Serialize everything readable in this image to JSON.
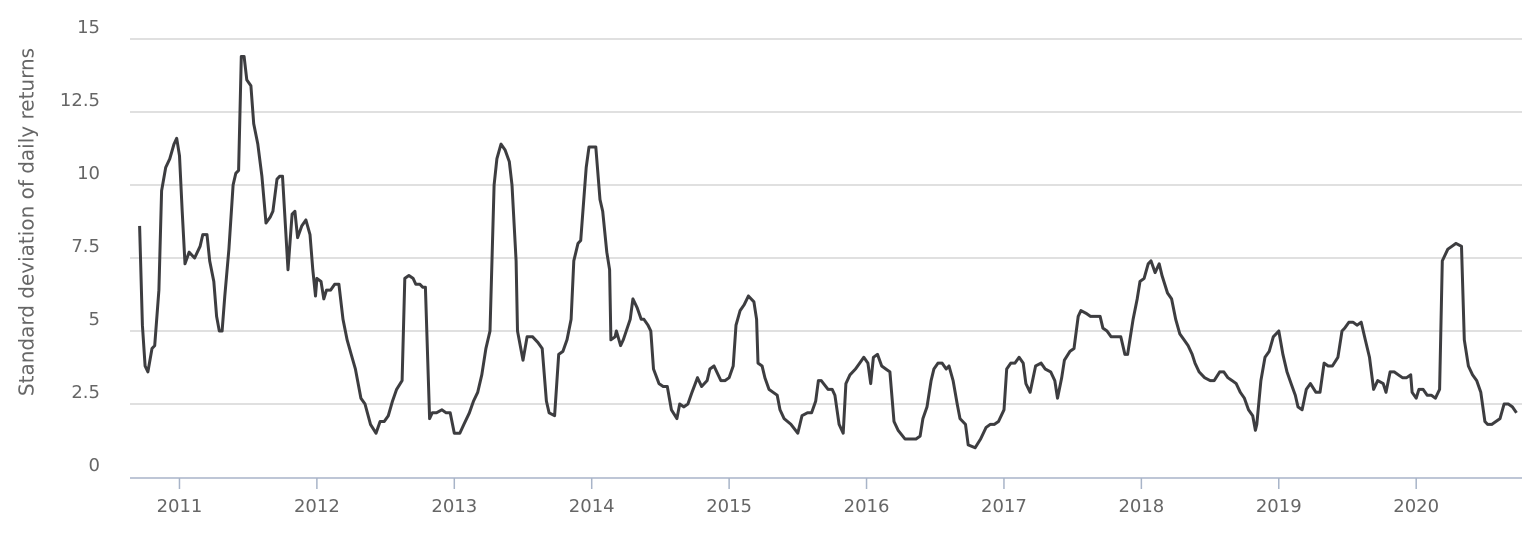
{
  "chart_data": {
    "type": "line",
    "y_label": "Standard deviation of daily returns",
    "x": [
      2010.71,
      2010.73,
      2010.75,
      2010.77,
      2010.8,
      2010.82,
      2010.85,
      2010.87,
      2010.9,
      2010.93,
      2010.96,
      2010.98,
      2011.0,
      2011.02,
      2011.04,
      2011.07,
      2011.11,
      2011.15,
      2011.17,
      2011.2,
      2011.22,
      2011.25,
      2011.27,
      2011.29,
      2011.31,
      2011.33,
      2011.36,
      2011.39,
      2011.41,
      2011.43,
      2011.45,
      2011.47,
      2011.49,
      2011.52,
      2011.54,
      2011.57,
      2011.6,
      2011.63,
      2011.66,
      2011.68,
      2011.71,
      2011.73,
      2011.75,
      2011.79,
      2011.82,
      2011.84,
      2011.86,
      2011.89,
      2011.92,
      2011.95,
      2011.97,
      2011.99,
      2012.0,
      2012.03,
      2012.05,
      2012.07,
      2012.1,
      2012.13,
      2012.16,
      2012.19,
      2012.22,
      2012.25,
      2012.28,
      2012.32,
      2012.35,
      2012.39,
      2012.43,
      2012.46,
      2012.49,
      2012.52,
      2012.55,
      2012.58,
      2012.62,
      2012.64,
      2012.67,
      2012.7,
      2012.72,
      2012.75,
      2012.77,
      2012.79,
      2012.82,
      2012.84,
      2012.87,
      2012.91,
      2012.94,
      2012.97,
      2013.0,
      2013.04,
      2013.07,
      2013.11,
      2013.14,
      2013.17,
      2013.2,
      2013.23,
      2013.26,
      2013.29,
      2013.31,
      2013.34,
      2013.37,
      2013.4,
      2013.42,
      2013.45,
      2013.46,
      2013.5,
      2013.53,
      2013.57,
      2013.61,
      2013.64,
      2013.67,
      2013.69,
      2013.73,
      2013.76,
      2013.79,
      2013.82,
      2013.85,
      2013.87,
      2013.9,
      2013.92,
      2013.96,
      2013.98,
      2014.03,
      2014.06,
      2014.08,
      2014.11,
      2014.13,
      2014.14,
      2014.17,
      2014.18,
      2014.21,
      2014.23,
      2014.28,
      2014.3,
      2014.33,
      2014.36,
      2014.38,
      2014.41,
      2014.43,
      2014.45,
      2014.49,
      2014.52,
      2014.55,
      2014.58,
      2014.62,
      2014.64,
      2014.67,
      2014.7,
      2014.73,
      2014.77,
      2014.8,
      2014.84,
      2014.86,
      2014.89,
      2014.92,
      2014.94,
      2014.97,
      2015.0,
      2015.03,
      2015.05,
      2015.08,
      2015.11,
      2015.14,
      2015.18,
      2015.2,
      2015.21,
      2015.24,
      2015.26,
      2015.29,
      2015.32,
      2015.35,
      2015.37,
      2015.4,
      2015.45,
      2015.5,
      2015.53,
      2015.57,
      2015.6,
      2015.63,
      2015.65,
      2015.67,
      2015.72,
      2015.75,
      2015.77,
      2015.8,
      2015.83,
      2015.85,
      2015.88,
      2015.92,
      2015.95,
      2015.98,
      2016.01,
      2016.03,
      2016.05,
      2016.08,
      2016.11,
      2016.14,
      2016.17,
      2016.2,
      2016.23,
      2016.28,
      2016.32,
      2016.36,
      2016.39,
      2016.41,
      2016.44,
      2016.47,
      2016.49,
      2016.52,
      2016.55,
      2016.58,
      2016.6,
      2016.63,
      2016.66,
      2016.68,
      2016.72,
      2016.74,
      2016.79,
      2016.83,
      2016.87,
      2016.9,
      2016.93,
      2016.96,
      2017.0,
      2017.02,
      2017.05,
      2017.08,
      2017.11,
      2017.14,
      2017.16,
      2017.19,
      2017.23,
      2017.27,
      2017.3,
      2017.34,
      2017.37,
      2017.39,
      2017.42,
      2017.44,
      2017.48,
      2017.51,
      2017.54,
      2017.56,
      2017.6,
      2017.63,
      2017.67,
      2017.7,
      2017.72,
      2017.75,
      2017.78,
      2017.81,
      2017.85,
      2017.88,
      2017.9,
      2017.94,
      2017.97,
      2017.99,
      2018.02,
      2018.05,
      2018.07,
      2018.1,
      2018.13,
      2018.15,
      2018.19,
      2018.22,
      2018.25,
      2018.28,
      2018.31,
      2018.34,
      2018.37,
      2018.39,
      2018.42,
      2018.46,
      2018.5,
      2018.53,
      2018.57,
      2018.6,
      2018.63,
      2018.66,
      2018.69,
      2018.72,
      2018.75,
      2018.78,
      2018.81,
      2018.83,
      2018.84,
      2018.87,
      2018.9,
      2018.93,
      2018.96,
      2019.0,
      2019.03,
      2019.06,
      2019.09,
      2019.12,
      2019.14,
      2019.17,
      2019.2,
      2019.23,
      2019.27,
      2019.3,
      2019.33,
      2019.36,
      2019.39,
      2019.43,
      2019.46,
      2019.48,
      2019.51,
      2019.54,
      2019.57,
      2019.6,
      2019.63,
      2019.66,
      2019.69,
      2019.72,
      2019.76,
      2019.78,
      2019.81,
      2019.84,
      2019.87,
      2019.9,
      2019.93,
      2019.96,
      2019.97,
      2020.0,
      2020.02,
      2020.05,
      2020.08,
      2020.11,
      2020.14,
      2020.17,
      2020.19,
      2020.23,
      2020.26,
      2020.29,
      2020.33,
      2020.35,
      2020.38,
      2020.41,
      2020.44,
      2020.47,
      2020.5,
      2020.52,
      2020.55,
      2020.58,
      2020.61,
      2020.64,
      2020.67,
      2020.7,
      2020.73
    ],
    "series": [
      {
        "color": "#3d3d40",
        "values": [
          8.6,
          5.2,
          3.8,
          3.6,
          4.4,
          4.5,
          6.4,
          9.8,
          10.6,
          10.9,
          11.4,
          11.6,
          11.0,
          9.1,
          7.3,
          7.7,
          7.5,
          7.9,
          8.3,
          8.3,
          7.4,
          6.7,
          5.5,
          5.0,
          5.0,
          6.2,
          7.8,
          10.0,
          10.4,
          10.5,
          14.4,
          14.4,
          13.6,
          13.4,
          12.1,
          11.4,
          10.3,
          8.7,
          8.9,
          9.1,
          10.2,
          10.3,
          10.3,
          7.1,
          9.0,
          9.1,
          8.2,
          8.6,
          8.8,
          8.3,
          7.1,
          6.2,
          6.8,
          6.7,
          6.1,
          6.4,
          6.4,
          6.6,
          6.6,
          5.4,
          4.7,
          4.2,
          3.7,
          2.7,
          2.5,
          1.8,
          1.5,
          1.9,
          1.9,
          2.1,
          2.6,
          3.0,
          3.3,
          6.8,
          6.9,
          6.8,
          6.6,
          6.6,
          6.5,
          6.5,
          2.0,
          2.2,
          2.2,
          2.3,
          2.2,
          2.2,
          1.5,
          1.5,
          1.8,
          2.2,
          2.6,
          2.9,
          3.5,
          4.4,
          5.0,
          10.0,
          10.9,
          11.4,
          11.2,
          10.8,
          10.0,
          7.4,
          5.0,
          4.0,
          4.8,
          4.8,
          4.6,
          4.4,
          2.6,
          2.2,
          2.1,
          4.2,
          4.3,
          4.7,
          5.4,
          7.4,
          8.0,
          8.1,
          10.6,
          11.3,
          11.3,
          9.5,
          9.1,
          7.7,
          7.1,
          4.7,
          4.8,
          5.0,
          4.5,
          4.7,
          5.4,
          6.1,
          5.8,
          5.4,
          5.4,
          5.2,
          5.0,
          3.7,
          3.2,
          3.1,
          3.1,
          2.3,
          2.0,
          2.5,
          2.4,
          2.5,
          2.9,
          3.4,
          3.1,
          3.3,
          3.7,
          3.8,
          3.5,
          3.3,
          3.3,
          3.4,
          3.8,
          5.2,
          5.7,
          5.9,
          6.2,
          6.0,
          5.4,
          3.9,
          3.8,
          3.4,
          3.0,
          2.9,
          2.8,
          2.3,
          2.0,
          1.8,
          1.5,
          2.1,
          2.2,
          2.2,
          2.6,
          3.3,
          3.3,
          3.0,
          3.0,
          2.8,
          1.8,
          1.5,
          3.2,
          3.5,
          3.7,
          3.9,
          4.1,
          3.9,
          3.2,
          4.1,
          4.2,
          3.8,
          3.7,
          3.6,
          1.9,
          1.6,
          1.3,
          1.3,
          1.3,
          1.4,
          2.0,
          2.4,
          3.3,
          3.7,
          3.9,
          3.9,
          3.7,
          3.8,
          3.3,
          2.5,
          2.0,
          1.8,
          1.1,
          1.0,
          1.3,
          1.7,
          1.8,
          1.8,
          1.9,
          2.3,
          3.7,
          3.9,
          3.9,
          4.1,
          3.9,
          3.2,
          2.9,
          3.8,
          3.9,
          3.7,
          3.6,
          3.3,
          2.7,
          3.4,
          4.0,
          4.3,
          4.4,
          5.5,
          5.7,
          5.6,
          5.5,
          5.5,
          5.5,
          5.1,
          5.0,
          4.8,
          4.8,
          4.8,
          4.2,
          4.2,
          5.4,
          6.1,
          6.7,
          6.8,
          7.3,
          7.4,
          7.0,
          7.3,
          6.9,
          6.3,
          6.1,
          5.4,
          4.9,
          4.7,
          4.5,
          4.2,
          3.9,
          3.6,
          3.4,
          3.3,
          3.3,
          3.6,
          3.6,
          3.4,
          3.3,
          3.2,
          2.9,
          2.7,
          2.3,
          2.1,
          1.6,
          1.8,
          3.3,
          4.1,
          4.3,
          4.8,
          5.0,
          4.2,
          3.6,
          3.2,
          2.8,
          2.4,
          2.3,
          3.0,
          3.2,
          2.9,
          2.9,
          3.9,
          3.8,
          3.8,
          4.1,
          5.0,
          5.1,
          5.3,
          5.3,
          5.2,
          5.3,
          4.7,
          4.1,
          3.0,
          3.3,
          3.2,
          2.9,
          3.6,
          3.6,
          3.5,
          3.4,
          3.4,
          3.5,
          2.9,
          2.7,
          3.0,
          3.0,
          2.8,
          2.8,
          2.7,
          3.0,
          7.4,
          7.8,
          7.9,
          8.0,
          7.9,
          4.7,
          3.8,
          3.5,
          3.3,
          2.9,
          1.9,
          1.8,
          1.8,
          1.9,
          2.0,
          2.5,
          2.5,
          2.4,
          2.2
        ]
      }
    ],
    "xlim": [
      2010.64,
      2020.77
    ],
    "xticks": [
      2011,
      2012,
      2013,
      2014,
      2015,
      2016,
      2017,
      2018,
      2019,
      2020
    ],
    "ylim": [
      0,
      15
    ],
    "yticks": [
      0,
      2.5,
      5,
      7.5,
      10,
      12.5,
      15
    ],
    "grid": true
  }
}
